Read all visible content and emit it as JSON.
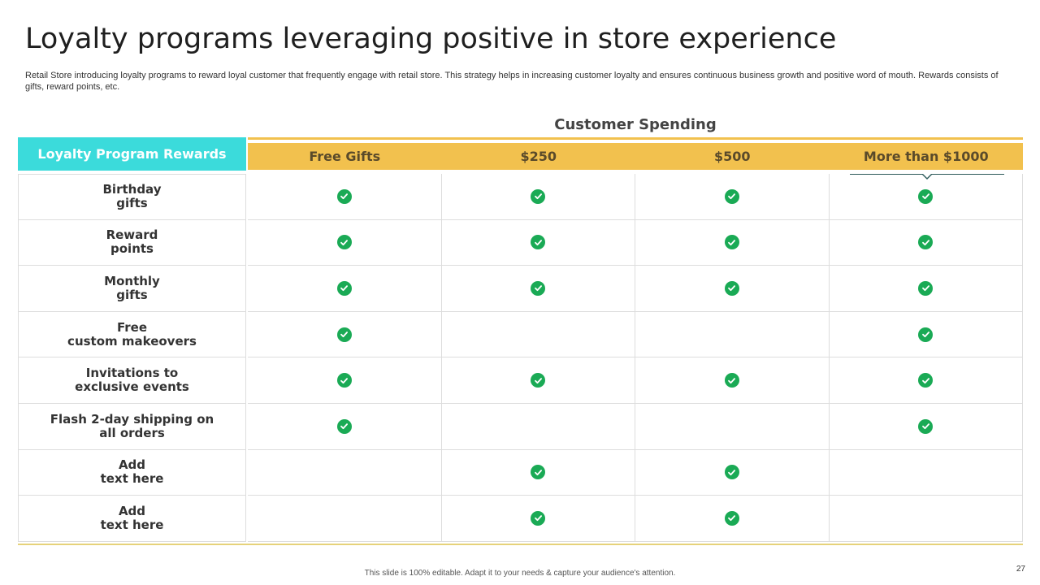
{
  "title": "Loyalty programs leveraging positive in store experience",
  "subtitle": "Retail Store introducing loyalty programs to reward loyal customer that frequently engage with retail store. This strategy helps in increasing customer loyalty and ensures continuous business growth and positive word of mouth. Rewards consists of gifts, reward points, etc.",
  "table": {
    "group_label": "Customer Spending",
    "rewards_header": "Loyalty Program Rewards",
    "tiers": [
      "Free Gifts",
      "$250",
      "$500",
      "More than $1000"
    ],
    "rows": [
      {
        "label": "Birthday\ngifts",
        "checks": [
          true,
          true,
          true,
          true
        ]
      },
      {
        "label": "Reward\npoints",
        "checks": [
          true,
          true,
          true,
          true
        ]
      },
      {
        "label": "Monthly\ngifts",
        "checks": [
          true,
          true,
          true,
          true
        ]
      },
      {
        "label": "Free\ncustom makeovers",
        "checks": [
          true,
          false,
          false,
          true
        ]
      },
      {
        "label": "Invitations to\nexclusive events",
        "checks": [
          true,
          true,
          true,
          true
        ]
      },
      {
        "label": "Flash 2-day shipping on\nall orders",
        "checks": [
          true,
          false,
          false,
          true
        ]
      },
      {
        "label": "Add\ntext here",
        "checks": [
          false,
          true,
          true,
          false
        ]
      },
      {
        "label": "Add\ntext here",
        "checks": [
          false,
          true,
          true,
          false
        ]
      }
    ]
  },
  "footer": "This slide is 100% editable. Adapt it to your needs & capture your audience's attention.",
  "page_number": "27",
  "colors": {
    "accent_teal": "#3bdbdb",
    "accent_gold": "#f2c14e",
    "check_green": "#1aaa55"
  },
  "icons": {
    "check": "check-circle-icon"
  }
}
